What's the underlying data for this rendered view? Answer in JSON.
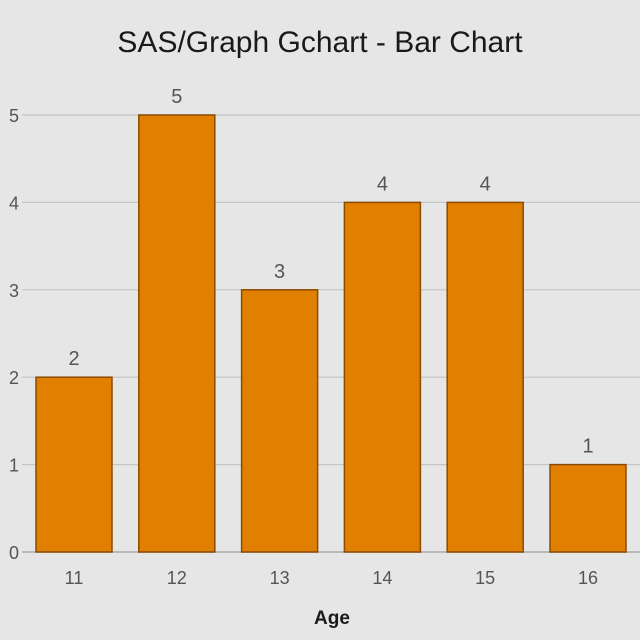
{
  "chart_data": {
    "type": "bar",
    "title": "SAS/Graph Gchart - Bar Chart",
    "xlabel": "Age",
    "ylabel": "",
    "categories": [
      "11",
      "12",
      "13",
      "14",
      "15",
      "16"
    ],
    "values": [
      2,
      5,
      3,
      4,
      4,
      1
    ],
    "ylim": [
      0,
      5
    ],
    "yticks": [
      0,
      1,
      2,
      3,
      4,
      5
    ],
    "bar_color": "#e07f00",
    "grid": true,
    "legend": "none"
  }
}
